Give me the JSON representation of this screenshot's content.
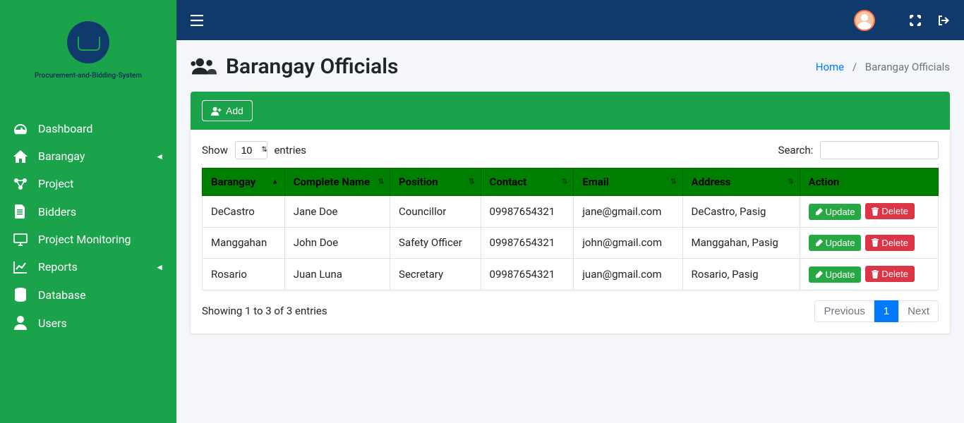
{
  "sidebar": {
    "logo_text": "Procurement-and-Bidding-System",
    "items": [
      {
        "label": "Dashboard",
        "icon": "tachometer",
        "expandable": false
      },
      {
        "label": "Barangay",
        "icon": "home",
        "expandable": true
      },
      {
        "label": "Project",
        "icon": "share-nodes",
        "expandable": false
      },
      {
        "label": "Bidders",
        "icon": "file",
        "expandable": false
      },
      {
        "label": "Project Monitoring",
        "icon": "monitor",
        "expandable": false
      },
      {
        "label": "Reports",
        "icon": "chart",
        "expandable": true
      },
      {
        "label": "Database",
        "icon": "database",
        "expandable": false
      },
      {
        "label": "Users",
        "icon": "user",
        "expandable": false
      }
    ]
  },
  "page": {
    "title": "Barangay Officials",
    "breadcrumb_home": "Home",
    "breadcrumb_current": "Barangay Officials"
  },
  "card": {
    "add_label": "Add",
    "show_label": "Show",
    "entries_label": "entries",
    "entries_value": "10",
    "search_label": "Search:",
    "columns": [
      "Barangay",
      "Complete Name",
      "Position",
      "Contact",
      "Email",
      "Address",
      "Action"
    ],
    "rows": [
      {
        "barangay": "DeCastro",
        "name": "Jane Doe",
        "position": "Councillor",
        "contact": "09987654321",
        "email": "jane@gmail.com",
        "address": "DeCastro, Pasig"
      },
      {
        "barangay": "Manggahan",
        "name": "John Doe",
        "position": "Safety Officer",
        "contact": "09987654321",
        "email": "john@gmail.com",
        "address": "Manggahan, Pasig"
      },
      {
        "barangay": "Rosario",
        "name": "Juan Luna",
        "position": "Secretary",
        "contact": "09987654321",
        "email": "juan@gmail.com",
        "address": "Rosario, Pasig"
      }
    ],
    "update_label": "Update",
    "delete_label": "Delete",
    "info_text": "Showing 1 to 3 of 3 entries",
    "prev_label": "Previous",
    "page_number": "1",
    "next_label": "Next"
  },
  "colors": {
    "sidebar_bg": "#1aa34a",
    "topbar_bg": "#0f3a6b",
    "table_header_bg": "#008000",
    "btn_success": "#28a745",
    "btn_danger": "#dc3545",
    "link": "#007bff"
  }
}
